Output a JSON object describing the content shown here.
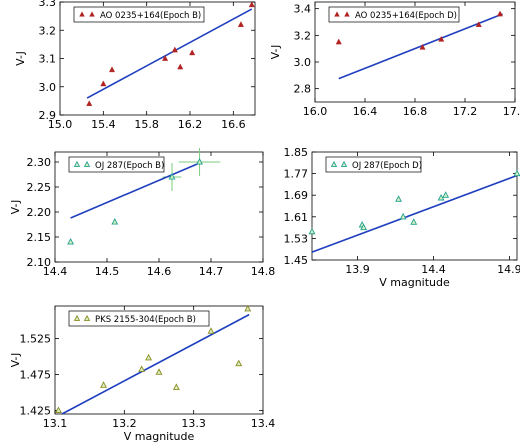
{
  "chart_data": [
    {
      "type": "scatter",
      "panel": "top-left",
      "ylabel": "V-J",
      "xlabel": "",
      "xlim": [
        15.0,
        16.8
      ],
      "ylim": [
        2.9,
        3.3
      ],
      "xticks": [
        "15.0",
        "15.4",
        "15.8",
        "16.2",
        "16.6"
      ],
      "xtick_values": [
        15.0,
        15.4,
        15.8,
        16.2,
        16.6
      ],
      "yticks": [
        "2.9",
        "3.0",
        "3.1",
        "3.2",
        "3.3"
      ],
      "ytick_values": [
        2.9,
        3.0,
        3.1,
        3.2,
        3.3
      ],
      "legend": {
        "label": "AO 0235+164(Epoch B)",
        "placement": "top-left",
        "marker": "triangle",
        "color": "#b22222"
      },
      "marker": "triangle",
      "marker_color": "#b22222",
      "points": [
        {
          "x": 15.27,
          "y": 2.94
        },
        {
          "x": 15.4,
          "y": 3.01
        },
        {
          "x": 15.48,
          "y": 3.06
        },
        {
          "x": 15.97,
          "y": 3.1
        },
        {
          "x": 16.06,
          "y": 3.13
        },
        {
          "x": 16.11,
          "y": 3.07
        },
        {
          "x": 16.22,
          "y": 3.12
        },
        {
          "x": 16.67,
          "y": 3.22
        },
        {
          "x": 16.77,
          "y": 3.29
        }
      ],
      "fit": {
        "x": [
          15.25,
          16.77
        ],
        "y": [
          2.96,
          3.275
        ],
        "color": "#1f3fbf"
      }
    },
    {
      "type": "scatter",
      "panel": "top-right",
      "ylabel": "V-J",
      "xlabel": "",
      "xlim": [
        16.0,
        17.6
      ],
      "ylim": [
        2.7,
        3.45
      ],
      "xticks": [
        "16.0",
        "16.4",
        "16.8",
        "17.2",
        "17.6"
      ],
      "xtick_values": [
        16.0,
        16.4,
        16.8,
        17.2,
        17.6
      ],
      "yticks": [
        "2.8",
        "3.0",
        "3.2",
        "3.4"
      ],
      "ytick_values": [
        2.8,
        3.0,
        3.2,
        3.4
      ],
      "legend": {
        "label": "AO 0235+164(Epoch D)",
        "placement": "top-left",
        "marker": "triangle",
        "color": "#b22222"
      },
      "marker": "triangle",
      "marker_color": "#b22222",
      "points": [
        {
          "x": 16.19,
          "y": 3.15
        },
        {
          "x": 16.86,
          "y": 3.11
        },
        {
          "x": 17.01,
          "y": 3.17
        },
        {
          "x": 17.31,
          "y": 3.28
        },
        {
          "x": 17.48,
          "y": 3.36
        }
      ],
      "fit": {
        "x": [
          16.19,
          17.5
        ],
        "y": [
          2.875,
          3.36
        ],
        "color": "#1f3fbf"
      }
    },
    {
      "type": "scatter",
      "panel": "middle-left",
      "ylabel": "V-J",
      "xlabel": "",
      "xlim": [
        14.4,
        14.8
      ],
      "ylim": [
        2.1,
        2.32
      ],
      "xticks": [
        "14.4",
        "14.5",
        "14.6",
        "14.7",
        "14.8"
      ],
      "xtick_values": [
        14.4,
        14.5,
        14.6,
        14.7,
        14.8
      ],
      "yticks": [
        "2.10",
        "2.15",
        "2.20",
        "2.25",
        "2.30"
      ],
      "ytick_values": [
        2.1,
        2.15,
        2.2,
        2.25,
        2.3
      ],
      "legend": {
        "label": "OJ 287(Epoch B)",
        "placement": "top-left",
        "marker": "triangle-open",
        "color": "#20a090"
      },
      "marker": "triangle-open",
      "marker_color": "#20a090",
      "points": [
        {
          "x": 14.43,
          "y": 2.14
        },
        {
          "x": 14.515,
          "y": 2.18
        },
        {
          "x": 14.625,
          "y": 2.27
        },
        {
          "x": 14.678,
          "y": 2.3
        }
      ],
      "error_bars": [
        {
          "x": 14.625,
          "y": 2.27,
          "xerr": 0.018,
          "yerr": 0.028
        },
        {
          "x": 14.678,
          "y": 2.3,
          "xerr": 0.04,
          "yerr": 0.028
        }
      ],
      "fit": {
        "x": [
          14.43,
          14.678
        ],
        "y": [
          2.188,
          2.298
        ],
        "color": "#1f3fbf"
      }
    },
    {
      "type": "scatter",
      "panel": "middle-right",
      "ylabel": "",
      "xlabel": "V magnitude",
      "xlim": [
        13.6,
        14.95
      ],
      "ylim": [
        1.45,
        1.85
      ],
      "xticks": [
        "13.9",
        "14.4",
        "14.9"
      ],
      "xtick_values": [
        13.9,
        14.4,
        14.9
      ],
      "yticks": [
        "1.45",
        "1.53",
        "1.61",
        "1.69",
        "1.77",
        "1.85"
      ],
      "ytick_values": [
        1.45,
        1.53,
        1.61,
        1.69,
        1.77,
        1.85
      ],
      "legend": {
        "label": "OJ 287(Epoch D)",
        "placement": "top-left",
        "marker": "triangle-open",
        "color": "#20a090"
      },
      "marker": "triangle-open",
      "marker_color": "#20a090",
      "points": [
        {
          "x": 13.6,
          "y": 1.555
        },
        {
          "x": 13.93,
          "y": 1.58
        },
        {
          "x": 13.94,
          "y": 1.57
        },
        {
          "x": 14.17,
          "y": 1.675
        },
        {
          "x": 14.2,
          "y": 1.61
        },
        {
          "x": 14.27,
          "y": 1.59
        },
        {
          "x": 14.45,
          "y": 1.68
        },
        {
          "x": 14.48,
          "y": 1.69
        },
        {
          "x": 14.95,
          "y": 1.77
        }
      ],
      "fit": {
        "x": [
          13.6,
          14.95
        ],
        "y": [
          1.479,
          1.763
        ],
        "color": "#1f3fbf"
      }
    },
    {
      "type": "scatter",
      "panel": "bottom-left",
      "ylabel": "V-J",
      "xlabel": "V magnitude",
      "xlim": [
        13.1,
        13.4
      ],
      "ylim": [
        1.42,
        1.57
      ],
      "xticks": [
        "13.1",
        "13.2",
        "13.3",
        "13.4"
      ],
      "xtick_values": [
        13.1,
        13.2,
        13.3,
        13.4
      ],
      "yticks": [
        "1.425",
        "1.475",
        "1.525"
      ],
      "ytick_values": [
        1.425,
        1.475,
        1.525
      ],
      "legend": {
        "label": "PKS 2155-304(Epoch B)",
        "placement": "top-left",
        "marker": "triangle-open",
        "color": "#8a8a20"
      },
      "marker": "triangle-open",
      "marker_color": "#8a8a20",
      "points": [
        {
          "x": 13.105,
          "y": 1.425
        },
        {
          "x": 13.17,
          "y": 1.46
        },
        {
          "x": 13.225,
          "y": 1.482
        },
        {
          "x": 13.235,
          "y": 1.498
        },
        {
          "x": 13.25,
          "y": 1.478
        },
        {
          "x": 13.275,
          "y": 1.457
        },
        {
          "x": 13.325,
          "y": 1.535
        },
        {
          "x": 13.365,
          "y": 1.49
        },
        {
          "x": 13.378,
          "y": 1.566
        }
      ],
      "fit": {
        "x": [
          13.11,
          13.38
        ],
        "y": [
          1.42,
          1.558
        ],
        "color": "#1f3fbf"
      }
    }
  ]
}
